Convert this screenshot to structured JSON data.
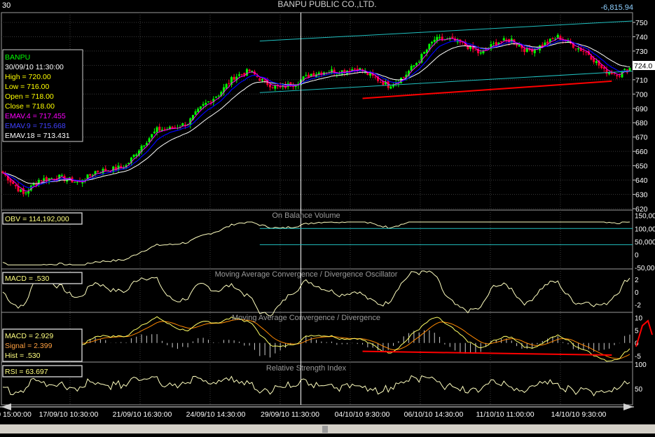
{
  "window": {
    "corner_label": "30",
    "title": "BANPU PUBLIC CO.,LTD.",
    "index_value": "-6,815.94"
  },
  "colors": {
    "background": "#000000",
    "grid": "#3a3a3a",
    "panel_border": "#9a9a9a",
    "up_candle": "#00ff00",
    "down_candle": "#ff0033",
    "emav4": "#ff00ff",
    "emav9": "#0000ff",
    "emav18": "#ffffff",
    "indicator_line": "#ffffc0",
    "macd_line": "#ffff66",
    "signal_line": "#ff8800",
    "channel": "#20c0c0",
    "trend_annotation": "#ff0000",
    "price_tag_bg": "#ffffff"
  },
  "info_box": {
    "symbol": "BANPU",
    "datetime": "30/09/10 11:30:00",
    "high": "High  = 720.00",
    "low": "Low   = 716.00",
    "open": "Open = 718.00",
    "close": "Close = 718.00",
    "emav4": "EMAV.4 = 717.455",
    "emav9": "EMAV.9 = 715.668",
    "emav18": "EMAV.18 = 713.431"
  },
  "price_tag": "724.0",
  "panels": {
    "obv": {
      "title": "On Balance Volume",
      "value_label": "OBV = 114,192,000",
      "ticks": [
        "150,00",
        "100,00",
        "50,000",
        "0",
        "-50,00"
      ]
    },
    "macd_osc": {
      "title": "Moving Average Convergence / Divergence Oscillator",
      "value_label": "MACD = .530",
      "ticks": [
        "2",
        "0",
        "-2"
      ]
    },
    "macd": {
      "title": "Moving Average Convergence / Divergence",
      "macd_label": "MACD = 2.929",
      "signal_label": "Signal = 2.399",
      "hist_label": "Hist = .530",
      "ticks": [
        "10",
        "5",
        "0",
        "-5"
      ]
    },
    "rsi": {
      "title": "Relative Strength Index",
      "value_label": "RSI = 63.697",
      "ticks": [
        "100",
        "50"
      ]
    }
  },
  "x_labels": [
    "0 15:00:00",
    "17/09/10 10:30:00",
    "21/09/10 16:30:00",
    "24/09/10 14:30:00",
    "29/09/10 11:30:00",
    "04/10/10 9:30:00",
    "06/10/10 14:30:00",
    "11/10/10 11:00:00",
    "14/10/10 9:30:00"
  ],
  "chart_data": {
    "type": "candlestick",
    "title": "BANPU PUBLIC CO.,LTD.",
    "ylim": [
      620,
      750
    ],
    "y_ticks": [
      750,
      740,
      730,
      720,
      710,
      700,
      690,
      680,
      670,
      660,
      650,
      640,
      630,
      620
    ],
    "close_path": [
      {
        "i": 0,
        "v": 645
      },
      {
        "i": 8,
        "v": 630
      },
      {
        "i": 14,
        "v": 640
      },
      {
        "i": 22,
        "v": 642
      },
      {
        "i": 30,
        "v": 638
      },
      {
        "i": 36,
        "v": 646
      },
      {
        "i": 44,
        "v": 648
      },
      {
        "i": 48,
        "v": 650
      },
      {
        "i": 54,
        "v": 664
      },
      {
        "i": 60,
        "v": 675
      },
      {
        "i": 66,
        "v": 676
      },
      {
        "i": 72,
        "v": 680
      },
      {
        "i": 78,
        "v": 692
      },
      {
        "i": 84,
        "v": 700
      },
      {
        "i": 90,
        "v": 712
      },
      {
        "i": 96,
        "v": 716
      },
      {
        "i": 102,
        "v": 708
      },
      {
        "i": 108,
        "v": 704
      },
      {
        "i": 114,
        "v": 708
      },
      {
        "i": 120,
        "v": 714
      },
      {
        "i": 126,
        "v": 716
      },
      {
        "i": 132,
        "v": 716
      },
      {
        "i": 138,
        "v": 718
      },
      {
        "i": 144,
        "v": 712
      },
      {
        "i": 150,
        "v": 706
      },
      {
        "i": 156,
        "v": 712
      },
      {
        "i": 162,
        "v": 724
      },
      {
        "i": 168,
        "v": 738
      },
      {
        "i": 174,
        "v": 738
      },
      {
        "i": 180,
        "v": 734
      },
      {
        "i": 186,
        "v": 728
      },
      {
        "i": 192,
        "v": 736
      },
      {
        "i": 198,
        "v": 738
      },
      {
        "i": 204,
        "v": 730
      },
      {
        "i": 210,
        "v": 734
      },
      {
        "i": 216,
        "v": 740
      },
      {
        "i": 222,
        "v": 734
      },
      {
        "i": 228,
        "v": 728
      },
      {
        "i": 234,
        "v": 716
      },
      {
        "i": 240,
        "v": 714
      },
      {
        "i": 244,
        "v": 718
      }
    ],
    "candle_count": 245,
    "channel_upper": [
      {
        "i": 100,
        "v": 737
      },
      {
        "i": 245,
        "v": 751
      }
    ],
    "channel_lower": [
      {
        "i": 100,
        "v": 701
      },
      {
        "i": 245,
        "v": 716
      }
    ],
    "trend_annotation": [
      {
        "i": 140,
        "v": 697
      },
      {
        "i": 237,
        "v": 709
      }
    ],
    "cursor_index": 116
  }
}
